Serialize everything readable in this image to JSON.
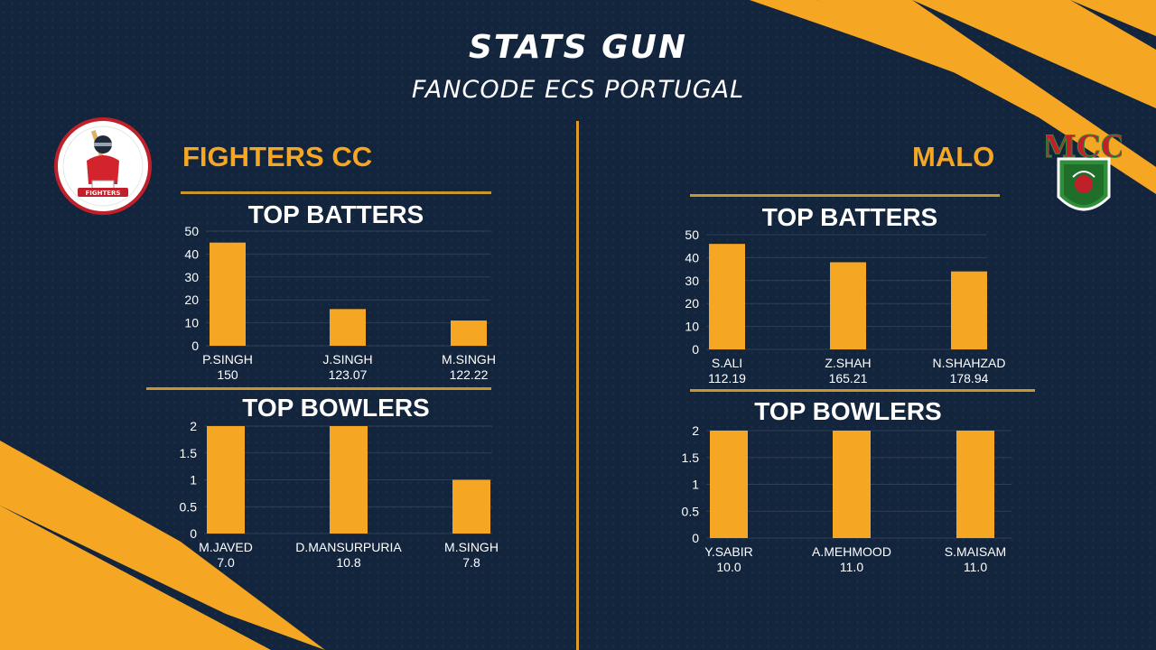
{
  "header": {
    "title": "STATS GUN",
    "subtitle": "FANCODE ECS PORTUGAL"
  },
  "teams": [
    {
      "name": "FIGHTERS CC",
      "logo_text": "FIGHTERS",
      "batting_title": "TOP BATTERS",
      "bowling_title": "TOP BOWLERS"
    },
    {
      "name": "MALO",
      "logo_text": "MCC",
      "batting_title": "TOP BATTERS",
      "bowling_title": "TOP BOWLERS"
    }
  ],
  "colors": {
    "bar": "#f5a623",
    "accent": "#f5a623",
    "background": "#13243d",
    "gold_line": "#c9962e"
  },
  "chart_data": [
    {
      "type": "bar",
      "id": "fighters-batters",
      "categories": [
        "P.SINGH",
        "J.SINGH",
        "M.SINGH"
      ],
      "sublabels": [
        "150",
        "123.07",
        "122.22"
      ],
      "values": [
        45,
        16,
        11
      ],
      "yticks": [
        "0",
        "10",
        "20",
        "30",
        "40",
        "50"
      ],
      "ylim": [
        0,
        50
      ]
    },
    {
      "type": "bar",
      "id": "fighters-bowlers",
      "categories": [
        "M.JAVED",
        "D.MANSURPURIA",
        "M.SINGH"
      ],
      "sublabels": [
        "7.0",
        "10.8",
        "7.8"
      ],
      "values": [
        2,
        2,
        1
      ],
      "yticks": [
        "0",
        "0.5",
        "1",
        "1.5",
        "2"
      ],
      "ylim": [
        0,
        2
      ]
    },
    {
      "type": "bar",
      "id": "malo-batters",
      "categories": [
        "S.ALI",
        "Z.SHAH",
        "N.SHAHZAD"
      ],
      "sublabels": [
        "112.19",
        "165.21",
        "178.94"
      ],
      "values": [
        46,
        38,
        34
      ],
      "yticks": [
        "0",
        "10",
        "20",
        "30",
        "40",
        "50"
      ],
      "ylim": [
        0,
        50
      ]
    },
    {
      "type": "bar",
      "id": "malo-bowlers",
      "categories": [
        "Y.SABIR",
        "A.MEHMOOD",
        "S.MAISAM"
      ],
      "sublabels": [
        "10.0",
        "11.0",
        "11.0"
      ],
      "values": [
        2,
        2,
        2
      ],
      "yticks": [
        "0",
        "0.5",
        "1",
        "1.5",
        "2"
      ],
      "ylim": [
        0,
        2
      ]
    }
  ]
}
